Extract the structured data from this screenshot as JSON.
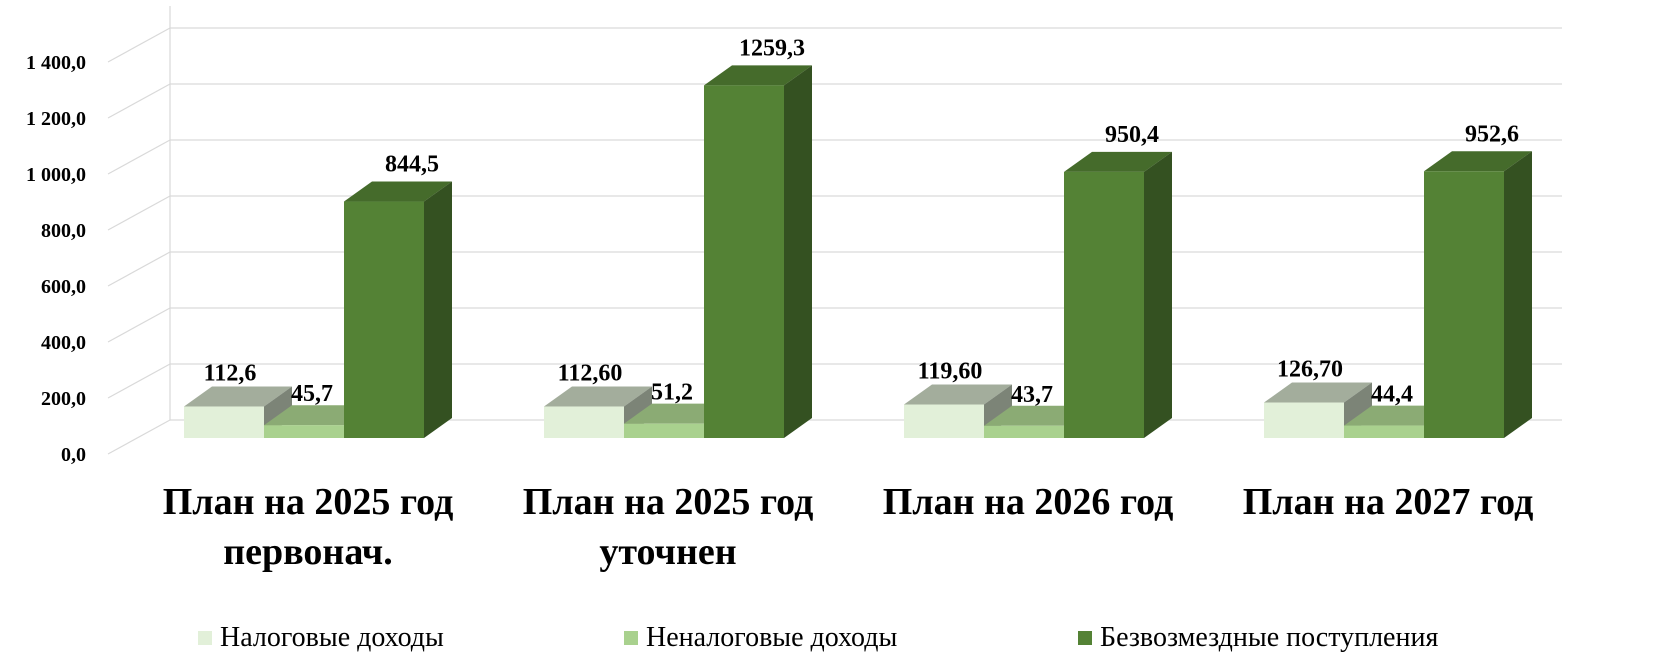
{
  "chart_data": {
    "type": "bar",
    "categories": [
      [
        "План на 2025 год",
        "первонач."
      ],
      [
        "План на 2025 год",
        "уточнен"
      ],
      [
        "План на 2026 год"
      ],
      [
        "План на 2027 год"
      ]
    ],
    "series": [
      {
        "name": "Налоговые доходы",
        "values": [
          112.6,
          112.6,
          119.6,
          126.7
        ],
        "labels": [
          "112,6",
          "112,60",
          "119,60",
          "126,70"
        ],
        "color": "#e2f0d9"
      },
      {
        "name": "Неналоговые доходы",
        "values": [
          45.7,
          51.2,
          43.7,
          44.4
        ],
        "labels": [
          "45,7",
          "51,2",
          "43,7",
          "44,4"
        ],
        "color": "#a9d18e"
      },
      {
        "name": "Безвозмездные поступления",
        "values": [
          844.5,
          1259.3,
          950.4,
          952.6
        ],
        "labels": [
          "844,5",
          "1259,3",
          "950,4",
          "952,6"
        ],
        "color": "#548235"
      }
    ],
    "yticks": [
      "0,0",
      "200,0",
      "400,0",
      "600,0",
      "800,0",
      "1 000,0",
      "1 200,0",
      "1 400,0"
    ],
    "ylim": [
      0,
      1400
    ],
    "grid": true,
    "legend_position": "bottom"
  }
}
